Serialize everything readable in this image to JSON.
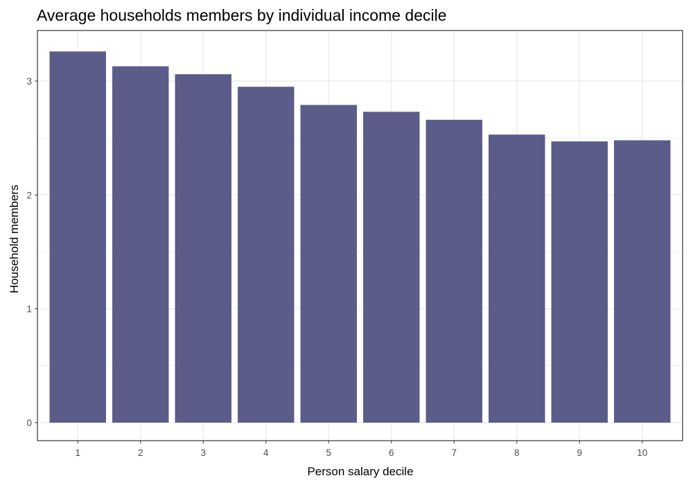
{
  "chart_data": {
    "type": "bar",
    "title": "Average households members by individual income decile",
    "xlabel": "Person salary decile",
    "ylabel": "Household members",
    "categories": [
      "1",
      "2",
      "3",
      "4",
      "5",
      "6",
      "7",
      "8",
      "9",
      "10"
    ],
    "values": [
      3.26,
      3.13,
      3.06,
      2.95,
      2.79,
      2.73,
      2.66,
      2.53,
      2.47,
      2.48
    ],
    "yticks": [
      0,
      1,
      2,
      3
    ],
    "ylim": [
      0,
      3.42
    ],
    "grid": true,
    "legend": "none",
    "colors": {
      "bar": "#5c5c8a",
      "grid": "#ebebeb",
      "panel_border": "#333333",
      "tick_text": "#4d4d4d",
      "background": "#ffffff"
    }
  }
}
